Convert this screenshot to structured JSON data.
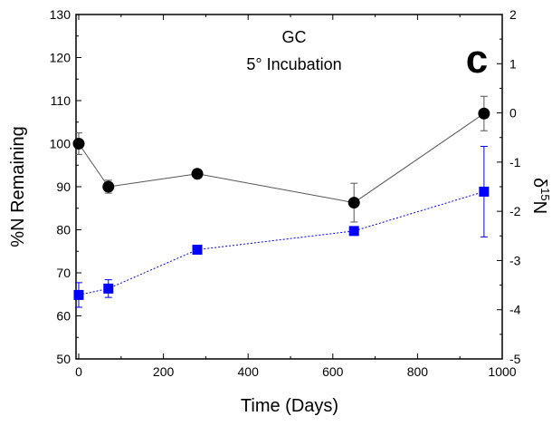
{
  "chart_data": {
    "type": "line",
    "panel_letter": "c",
    "annotation_lines": [
      "GC",
      "5° Incubation"
    ],
    "xlabel": "Time (Days)",
    "ylabel_left": "%N Remaining",
    "ylabel_right_base": "δ",
    "ylabel_right_sup": "15",
    "ylabel_right_tail": "N",
    "xlim": [
      0,
      1000
    ],
    "ylim_left": [
      50,
      130
    ],
    "ylim_right": [
      -5,
      2
    ],
    "x_ticks": [
      0,
      200,
      400,
      600,
      800,
      1000
    ],
    "y_left_ticks": [
      50,
      60,
      70,
      80,
      90,
      100,
      110,
      120,
      130
    ],
    "y_right_ticks": [
      -5,
      -4,
      -3,
      -2,
      -1,
      0,
      1,
      2
    ],
    "grid": false,
    "series": [
      {
        "axis": "left",
        "marker": "circle",
        "line_style": "solid",
        "color": "#000000",
        "line_color": "#555555",
        "points": [
          {
            "x": 0,
            "y": 100,
            "err": 2.5
          },
          {
            "x": 70,
            "y": 90,
            "err": 1.5
          },
          {
            "x": 280,
            "y": 93,
            "err": 0.5
          },
          {
            "x": 650,
            "y": 86.3,
            "err": 4.5
          },
          {
            "x": 957,
            "y": 107,
            "err": 4
          }
        ]
      },
      {
        "axis": "right",
        "marker": "square",
        "line_style": "dotted",
        "color": "#0000ff",
        "line_color": "#0000ff",
        "points": [
          {
            "x": 0,
            "y": -3.7,
            "err": 0.25
          },
          {
            "x": 70,
            "y": -3.57,
            "err": 0.18
          },
          {
            "x": 280,
            "y": -2.78,
            "err": 0.08
          },
          {
            "x": 650,
            "y": -2.4,
            "err": 0.07
          },
          {
            "x": 957,
            "y": -1.6,
            "err": 0.92
          }
        ]
      }
    ]
  }
}
